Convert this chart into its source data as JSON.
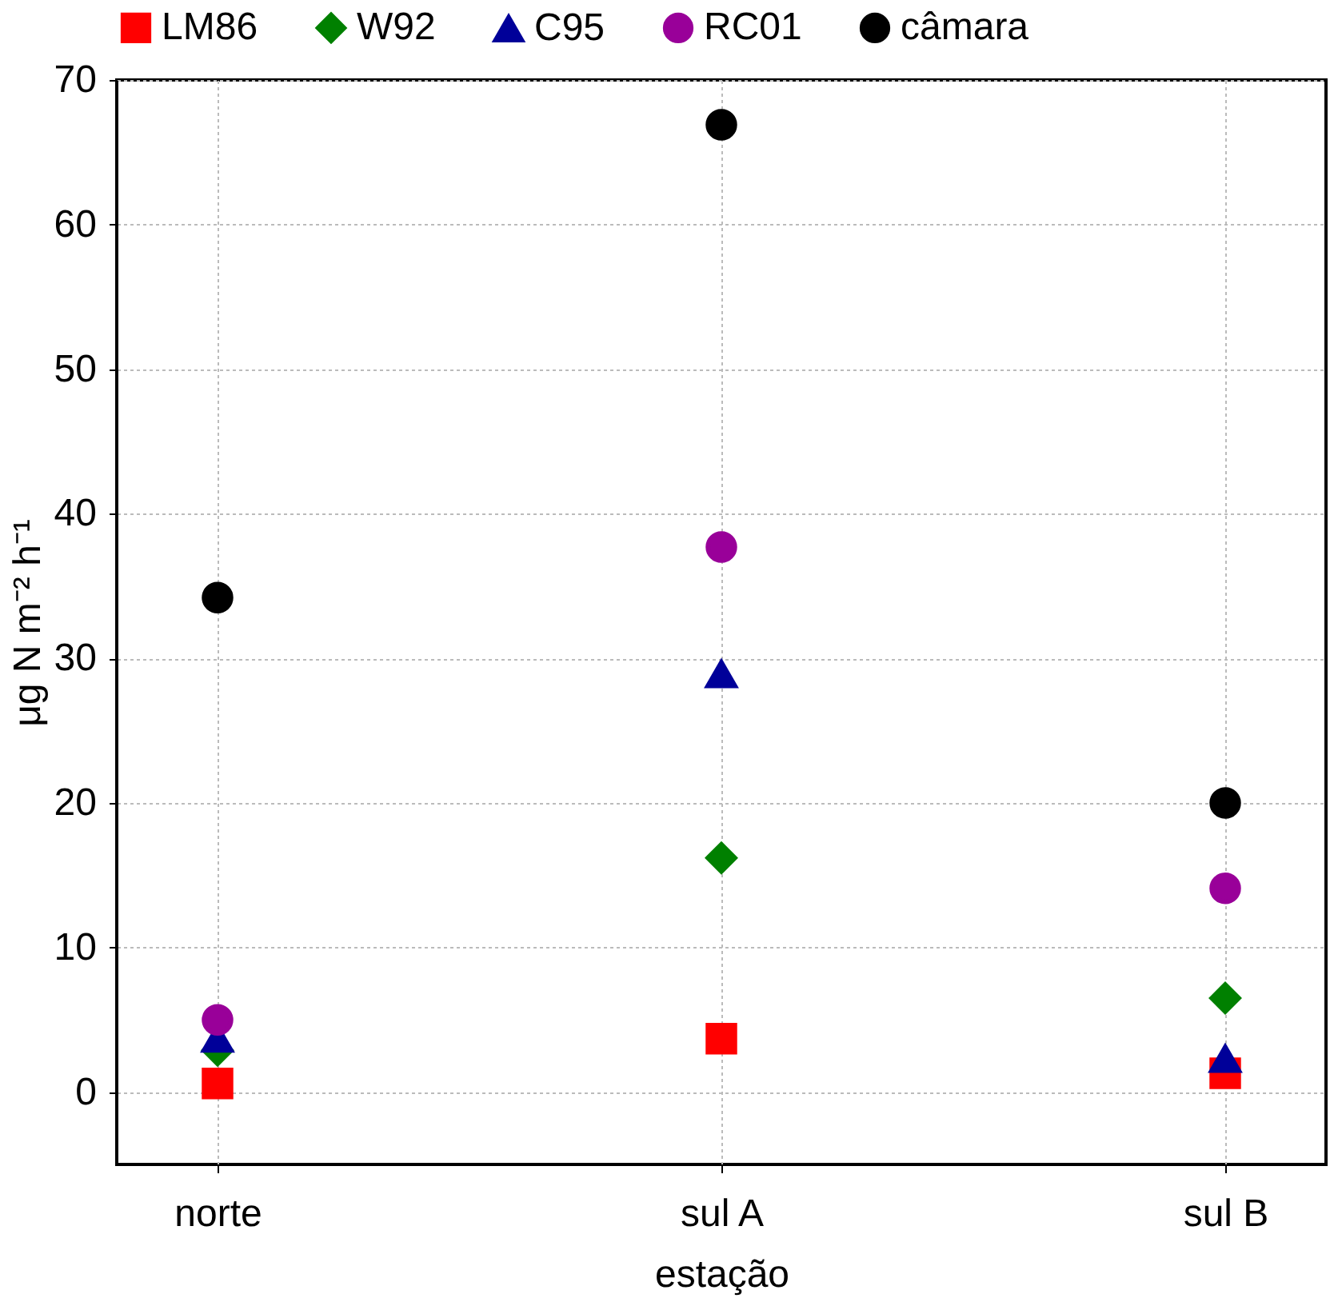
{
  "chart_data": {
    "type": "scatter",
    "xlabel": "estação",
    "ylabel": "μg N m⁻² h⁻¹",
    "categories": [
      "norte",
      "sul A",
      "sul B"
    ],
    "series": [
      {
        "name": "LM86",
        "color": "#ff0000",
        "marker": "square",
        "values": [
          0.6,
          3.7,
          1.3
        ]
      },
      {
        "name": "W92",
        "color": "#008000",
        "marker": "diamond",
        "values": [
          2.9,
          16.2,
          6.5
        ]
      },
      {
        "name": "C95",
        "color": "#000099",
        "marker": "triangle",
        "values": [
          3.7,
          28.9,
          2.3
        ]
      },
      {
        "name": "RC01",
        "color": "#990099",
        "marker": "circle",
        "values": [
          5.0,
          37.7,
          14.1
        ]
      },
      {
        "name": "câmara",
        "color": "#000000",
        "marker": "circle",
        "values": [
          34.2,
          66.9,
          20.0
        ]
      }
    ],
    "ylim": [
      -5,
      70
    ],
    "yticks": [
      0,
      10,
      20,
      30,
      40,
      50,
      60,
      70
    ],
    "grid": true,
    "legend": "top"
  }
}
